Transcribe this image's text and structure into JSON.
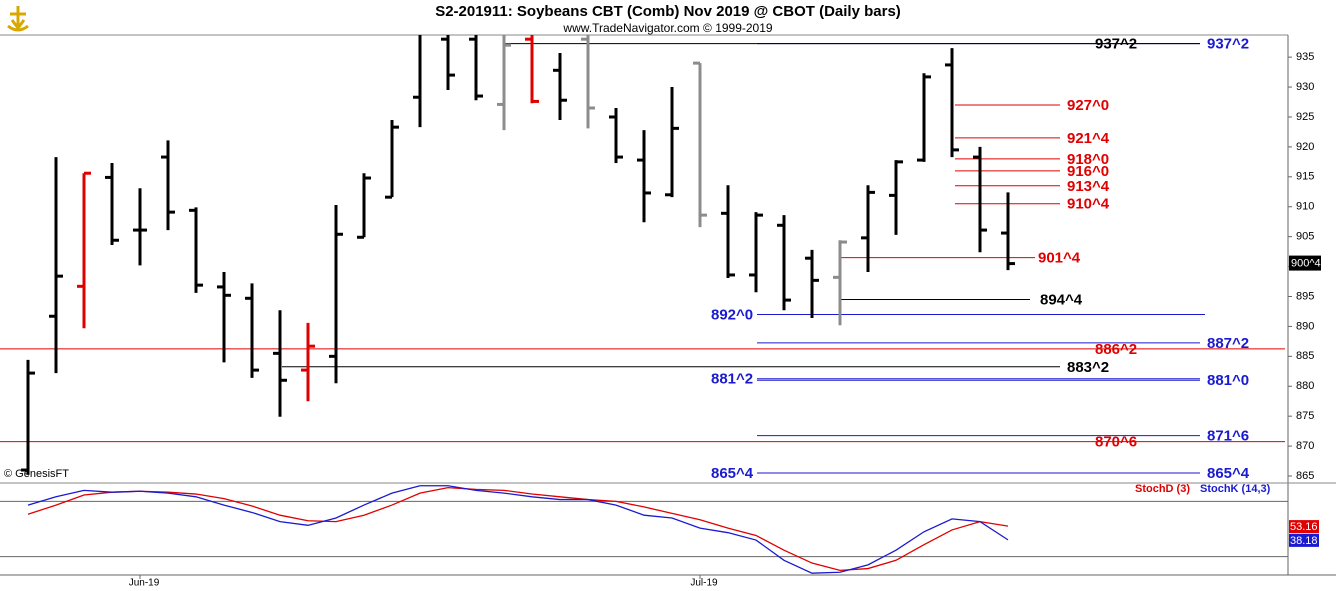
{
  "chart_data": [
    {
      "type": "ohlc",
      "title": "S2-201911:  Soybeans CBT (Comb) Nov 2019 @ CBOT  (Daily bars)",
      "subtitle": "www.TradeNavigator.com © 1999-2019",
      "source": "© GenesisFT",
      "categories": [
        null,
        null,
        null,
        null,
        "Jun-19",
        null,
        null,
        null,
        null,
        null,
        null,
        null,
        null,
        null,
        null,
        null,
        null,
        null,
        null,
        null,
        null,
        null,
        null,
        null,
        "Jul-19",
        null,
        null,
        null,
        null,
        null,
        null,
        null,
        null,
        null,
        null,
        null
      ],
      "open": [
        866,
        891.7,
        896.7,
        914.9,
        906.1,
        918.3,
        909.4,
        896.6,
        894.7,
        885.5,
        882.7,
        885,
        904.9,
        911.6,
        928.3,
        938,
        938,
        927.1,
        938,
        932.8,
        938,
        925,
        917.8,
        912,
        934,
        908.9,
        898.6,
        906.9,
        901.4,
        898.2,
        904.8,
        911.9,
        917.8,
        933.7,
        918.3,
        905.6
      ],
      "high": [
        884.4,
        918.3,
        915.6,
        917.3,
        913.1,
        921.1,
        909.9,
        899.1,
        897.2,
        892.7,
        890.6,
        910.3,
        915.6,
        924.5,
        941,
        941,
        941,
        941,
        941,
        935.7,
        941,
        926.5,
        922.8,
        930,
        934,
        913.6,
        909.1,
        908.6,
        902.8,
        904.4,
        913.6,
        917.8,
        932.3,
        936.5,
        920,
        912.4
      ],
      "low": [
        865.2,
        882.2,
        889.7,
        903.6,
        900.2,
        906.1,
        895.6,
        884,
        881.4,
        874.9,
        877.5,
        880.5,
        904.9,
        911.6,
        923.3,
        929.5,
        927.8,
        922.8,
        927.3,
        924.5,
        923.1,
        917.3,
        907.4,
        911.6,
        906.6,
        898.1,
        895.7,
        892.7,
        891.4,
        890.2,
        899.1,
        905.3,
        917.5,
        918.3,
        902.4,
        899.4
      ],
      "close": [
        882.2,
        898.4,
        915.6,
        904.4,
        906.1,
        909.1,
        896.9,
        895.2,
        882.7,
        881,
        886.7,
        905.4,
        914.8,
        923.3,
        939,
        932,
        928.5,
        937,
        927.6,
        927.8,
        926.5,
        918.3,
        912.3,
        923.1,
        908.6,
        898.6,
        908.6,
        894.4,
        897.7,
        904.1,
        912.4,
        917.5,
        931.7,
        919.5,
        906.1,
        900.5
      ],
      "colors": [
        "#000",
        "#000",
        "#e00000",
        "#000",
        "#000",
        "#000",
        "#000",
        "#000",
        "#000",
        "#000",
        "#e00000",
        "#000",
        "#000",
        "#000",
        "#000",
        "#000",
        "#000",
        "#8c8c8c",
        "#e00000",
        "#000",
        "#8c8c8c",
        "#000",
        "#000",
        "#000",
        "#8c8c8c",
        "#000",
        "#000",
        "#000",
        "#000",
        "#8c8c8c",
        "#000",
        "#000",
        "#000",
        "#000",
        "#000",
        "#000"
      ],
      "ylim": [
        864,
        938.7
      ],
      "yticks": [
        865,
        870,
        875,
        880,
        885,
        890,
        895,
        900,
        905,
        910,
        915,
        920,
        925,
        930,
        935
      ],
      "last": {
        "value": 900.5,
        "label": "900^4"
      },
      "levels": [
        {
          "value": 937.25,
          "label": "937^2",
          "color": "#1a1ad0"
        },
        {
          "value": 937.25,
          "label": "937^2",
          "color": "#000000"
        },
        {
          "value": 927,
          "label": "927^0",
          "color": "#e00000"
        },
        {
          "value": 921.5,
          "label": "921^4",
          "color": "#e00000"
        },
        {
          "value": 918,
          "label": "918^0",
          "color": "#e00000"
        },
        {
          "value": 916,
          "label": "916^0",
          "color": "#e00000"
        },
        {
          "value": 913.5,
          "label": "913^4",
          "color": "#e00000"
        },
        {
          "value": 910.5,
          "label": "910^4",
          "color": "#e00000"
        },
        {
          "value": 901.5,
          "label": "901^4",
          "color": "#e00000"
        },
        {
          "value": 894.5,
          "label": "894^4",
          "color": "#000000"
        },
        {
          "value": 892,
          "label": "892^0",
          "color": "#1a1ad0"
        },
        {
          "value": 887.25,
          "label": "887^2",
          "color": "#1a1ad0"
        },
        {
          "value": 886.25,
          "label": "886^2",
          "color": "#e00000"
        },
        {
          "value": 883.25,
          "label": "883^2",
          "color": "#000000"
        },
        {
          "value": 881.25,
          "label": "881^2",
          "color": "#1a1ad0"
        },
        {
          "value": 881,
          "label": "881^0",
          "color": "#1a1ad0"
        },
        {
          "value": 871.75,
          "label": "871^6",
          "color": "#1a1ad0"
        },
        {
          "value": 870.75,
          "label": "870^6",
          "color": "#e00000"
        },
        {
          "value": 865.5,
          "label": "865^4",
          "color": "#1a1ad0"
        },
        {
          "value": 865.5,
          "label": "865^4",
          "color": "#1a1ad0"
        }
      ]
    },
    {
      "type": "line",
      "ylim": [
        0,
        100
      ],
      "levels": [
        20,
        80
      ],
      "series": [
        {
          "name": "StochD (3)",
          "color": "#e00000",
          "values": [
            66,
            76,
            87,
            90,
            91,
            90,
            88,
            83,
            75,
            65,
            59,
            58,
            65,
            76,
            89,
            95,
            93,
            92,
            88,
            85,
            82,
            80,
            74,
            67,
            60,
            51,
            43,
            27,
            13,
            5,
            7,
            16,
            33,
            49,
            58,
            53.16
          ],
          "value_label": "53.16"
        },
        {
          "name": "StochK (14,3)",
          "color": "#1a1ad0",
          "values": [
            76,
            85,
            92,
            90,
            91,
            89,
            85,
            76,
            68,
            58,
            54,
            62,
            76,
            89,
            97,
            97,
            92,
            89,
            85,
            82,
            82,
            76,
            65,
            62,
            51,
            46,
            38,
            16,
            2,
            3,
            11,
            27,
            47,
            61,
            58,
            38.18
          ],
          "value_label": "38.18"
        }
      ]
    }
  ]
}
